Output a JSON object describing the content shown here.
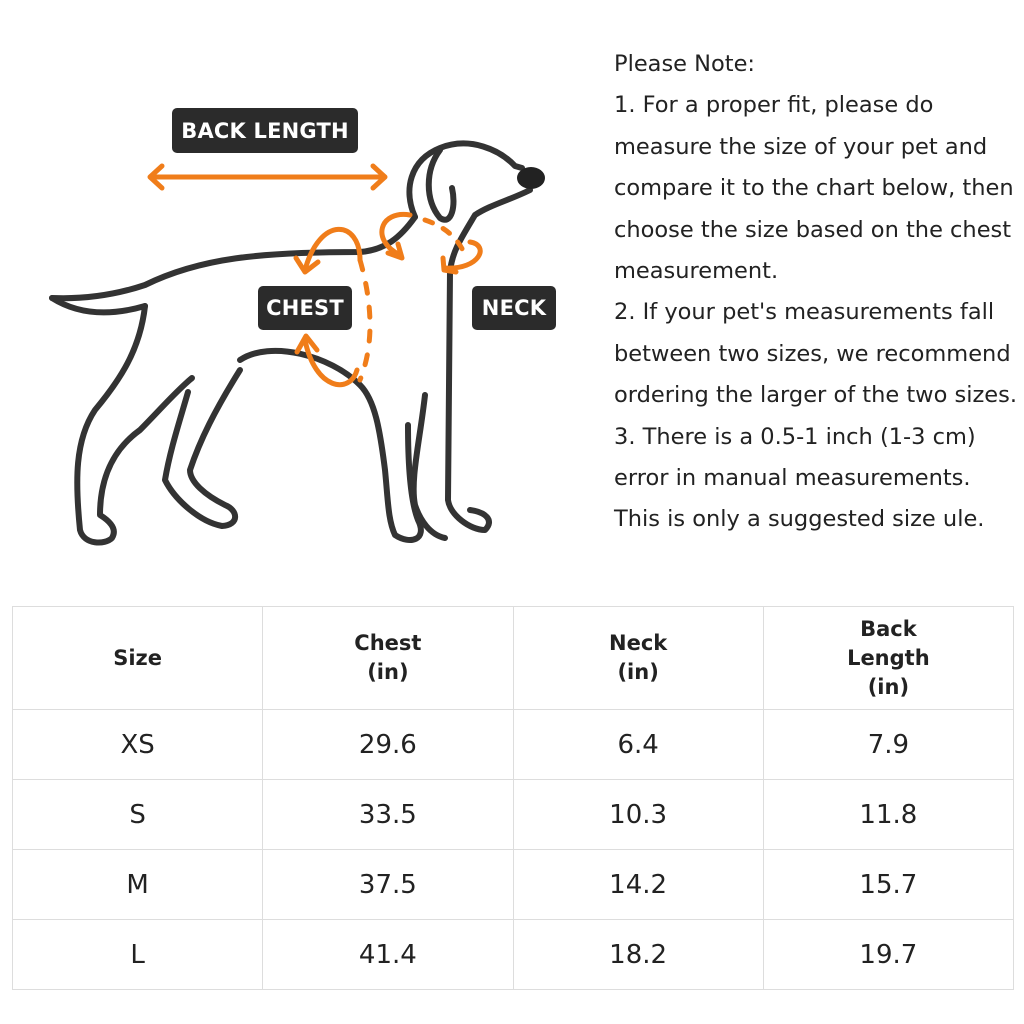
{
  "diagram": {
    "labels": {
      "back_length": "BACK LENGTH",
      "chest": "CHEST",
      "neck": "NECK"
    },
    "colors": {
      "outline": "#333333",
      "arrow": "#f07d1a",
      "label_bg": "#2b2b2b"
    }
  },
  "notes": {
    "title": "Please Note:",
    "lines": [
      "1. For a proper fit, please do",
      "measure the size of your pet and",
      "compare it to the chart below, then",
      "choose the size based on the chest",
      "measurement.",
      "2. If your pet's measurements fall",
      "between two sizes, we recommend",
      "ordering the larger of the two sizes.",
      "3. There is a 0.5-1 inch (1-3 cm)",
      "error in manual measurements.",
      "This is only a suggested size ule."
    ]
  },
  "table": {
    "headers": [
      [
        "Size"
      ],
      [
        "Chest",
        "(in)"
      ],
      [
        "Neck",
        "(in)"
      ],
      [
        "Back",
        "Length",
        "(in)"
      ]
    ],
    "rows": [
      [
        "XS",
        "29.6",
        "6.4",
        "7.9"
      ],
      [
        "S",
        "33.5",
        "10.3",
        "11.8"
      ],
      [
        "M",
        "37.5",
        "14.2",
        "15.7"
      ],
      [
        "L",
        "41.4",
        "18.2",
        "19.7"
      ]
    ]
  }
}
